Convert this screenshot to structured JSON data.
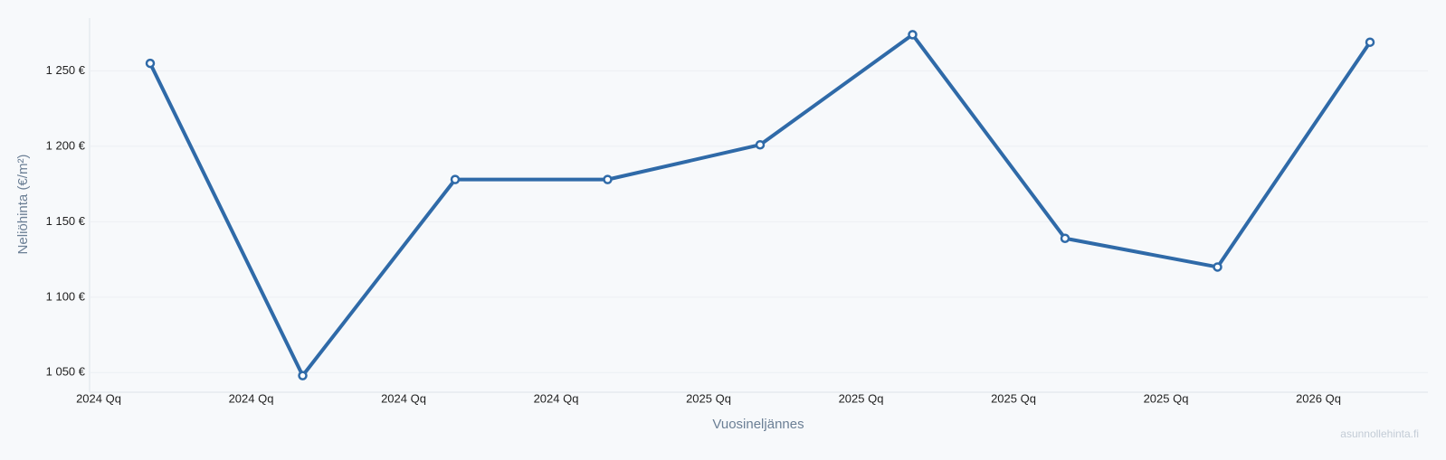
{
  "chart_data": {
    "type": "line",
    "x_label": "Vuosineljännes",
    "y_label": "Neliöhinta (€/m²)",
    "watermark": "asunnollehinta.fi",
    "categories": [
      "2024 Qq",
      "2024 Qq",
      "2024 Qq",
      "2024 Qq",
      "2025 Qq",
      "2025 Qq",
      "2025 Qq",
      "2025 Qq",
      "2026 Qq"
    ],
    "series": [
      {
        "color": "#2f6aa8",
        "values": [
          1255,
          1048,
          1178,
          1178,
          1201,
          1274,
          1139,
          1120,
          1269
        ]
      }
    ],
    "ylim": [
      1037,
      1285
    ],
    "yticks": [
      {
        "value": 1050,
        "label": "1 050 €"
      },
      {
        "value": 1100,
        "label": "1 100 €"
      },
      {
        "value": 1150,
        "label": "1 150 €"
      },
      {
        "value": 1200,
        "label": "1 200 €"
      },
      {
        "value": 1250,
        "label": "1 250 €"
      }
    ],
    "grid": true
  }
}
